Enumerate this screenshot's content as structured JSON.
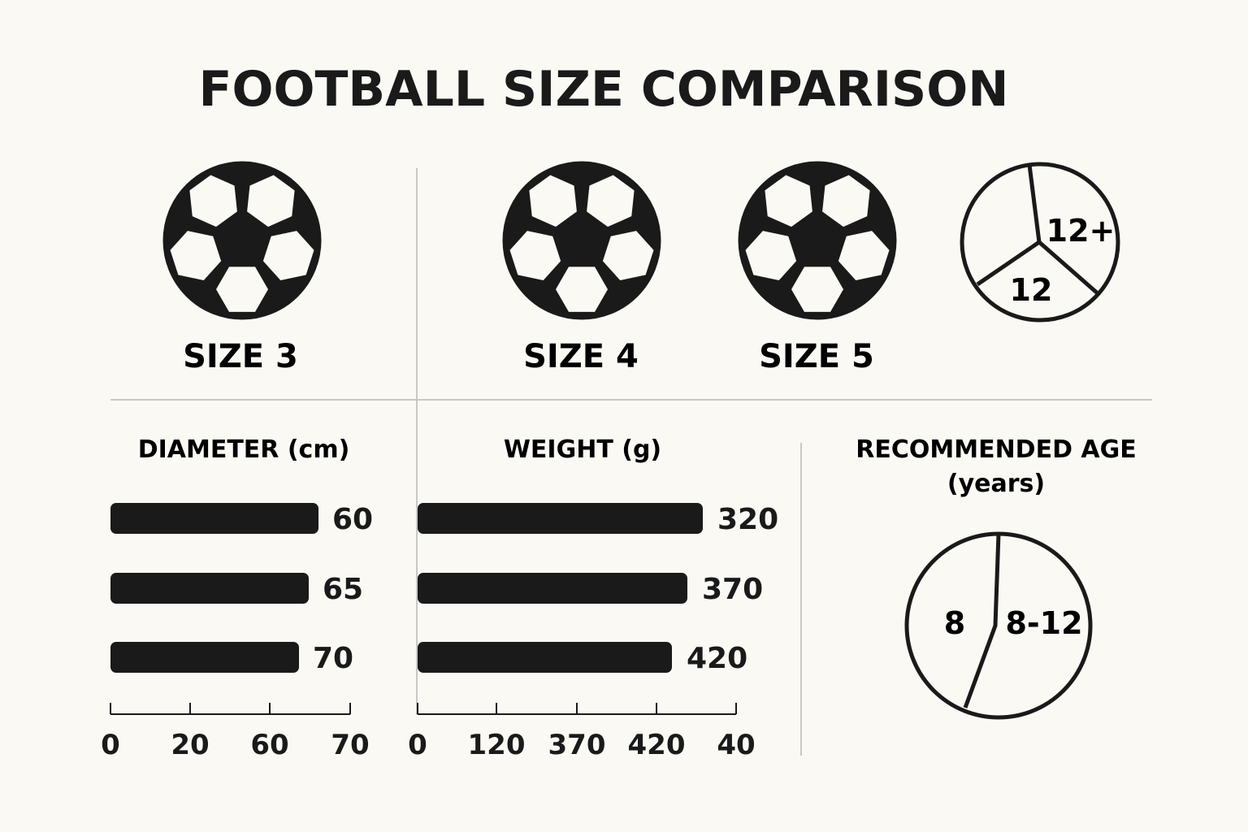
{
  "title": "FOOTBALL SIZE COMPARISON",
  "balls": [
    {
      "label": "SIZE 3"
    },
    {
      "label": "SIZE 4"
    },
    {
      "label": "SIZE 5"
    }
  ],
  "colors": {
    "ink": "#1a1a1a",
    "background": "#fbf9f4",
    "divider": "#c8c8c8"
  },
  "chart_data": [
    {
      "type": "bar",
      "orientation": "horizontal",
      "title": "DIAMETER (cm)",
      "values": [
        60,
        65,
        70
      ],
      "value_labels": [
        "60",
        "65",
        "70"
      ],
      "ticks": [
        "0",
        "20",
        "60",
        "70"
      ]
    },
    {
      "type": "bar",
      "orientation": "horizontal",
      "title": "WEIGHT (g)",
      "values": [
        320,
        370,
        420
      ],
      "value_labels": [
        "320",
        "370",
        "420"
      ],
      "ticks": [
        "0",
        "120",
        "370",
        "420",
        "40"
      ]
    },
    {
      "type": "pie",
      "title": "",
      "slices": [
        {
          "label": "12+"
        },
        {
          "label": "12"
        },
        {
          "label": ""
        }
      ]
    },
    {
      "type": "pie",
      "title": "RECOMMENDED AGE",
      "subtitle": "(years)",
      "slices": [
        {
          "label": "8"
        },
        {
          "label": "8-12"
        }
      ]
    }
  ]
}
